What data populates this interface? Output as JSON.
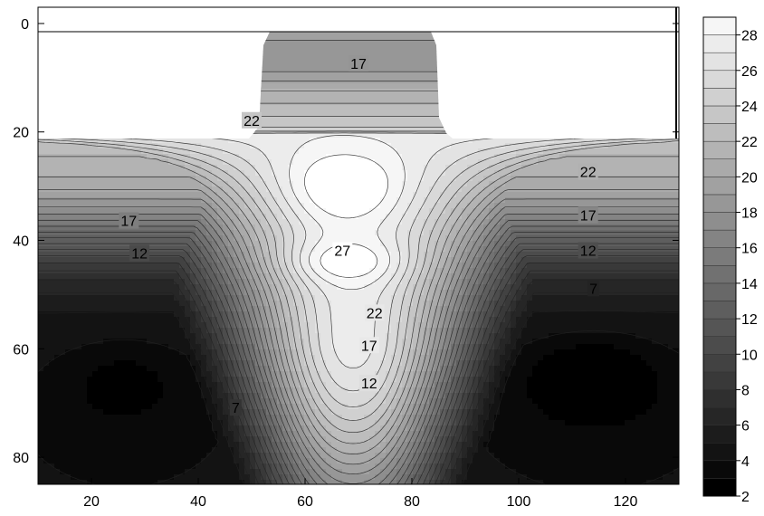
{
  "chart_data": {
    "type": "heatmap",
    "subtype": "filled-contour",
    "title": "",
    "xlabel": "",
    "ylabel": "",
    "xlim": [
      10,
      130
    ],
    "ylim": [
      85,
      -3
    ],
    "y_inverted": true,
    "x_ticks": [
      20,
      40,
      60,
      80,
      100,
      120
    ],
    "x_tick_labels": [
      "20",
      "40",
      "60",
      "80",
      "100",
      "120"
    ],
    "y_ticks": [
      0,
      20,
      40,
      60,
      80
    ],
    "y_tick_labels": [
      "0",
      "20",
      "40",
      "60",
      "80"
    ],
    "colorbar": {
      "min": 2,
      "max": 29,
      "step": 1,
      "ticks": [
        2,
        4,
        6,
        8,
        10,
        12,
        14,
        16,
        18,
        20,
        22,
        24,
        26,
        28
      ],
      "tick_labels": [
        "2",
        "4",
        "6",
        "8",
        "10",
        "12",
        "14",
        "16",
        "18",
        "20",
        "22",
        "24",
        "26",
        "28"
      ],
      "colormap": "grayscale",
      "color_low": "#000000",
      "color_high": "#ffffff"
    },
    "domain": {
      "pillar_x": [
        53,
        85
      ],
      "pillar_y": [
        0,
        20
      ],
      "slab_x": [
        10,
        130
      ],
      "slab_y": [
        20,
        85
      ],
      "empty_region_color": "#ffffff"
    },
    "contour_labels": [
      {
        "text": "17",
        "x": 70,
        "y": 7.5
      },
      {
        "text": "22",
        "x": 50,
        "y": 18
      },
      {
        "text": "22",
        "x": 113,
        "y": 27.5
      },
      {
        "text": "17",
        "x": 27,
        "y": 36.5
      },
      {
        "text": "17",
        "x": 113,
        "y": 35.5
      },
      {
        "text": "12",
        "x": 29,
        "y": 42.5
      },
      {
        "text": "12",
        "x": 113,
        "y": 42
      },
      {
        "text": "27",
        "x": 67,
        "y": 42
      },
      {
        "text": "7",
        "x": 114,
        "y": 49
      },
      {
        "text": "22",
        "x": 73,
        "y": 53.5
      },
      {
        "text": "17",
        "x": 72,
        "y": 59.5
      },
      {
        "text": "12",
        "x": 72,
        "y": 66.5
      },
      {
        "text": "7",
        "x": 47,
        "y": 71
      }
    ]
  }
}
